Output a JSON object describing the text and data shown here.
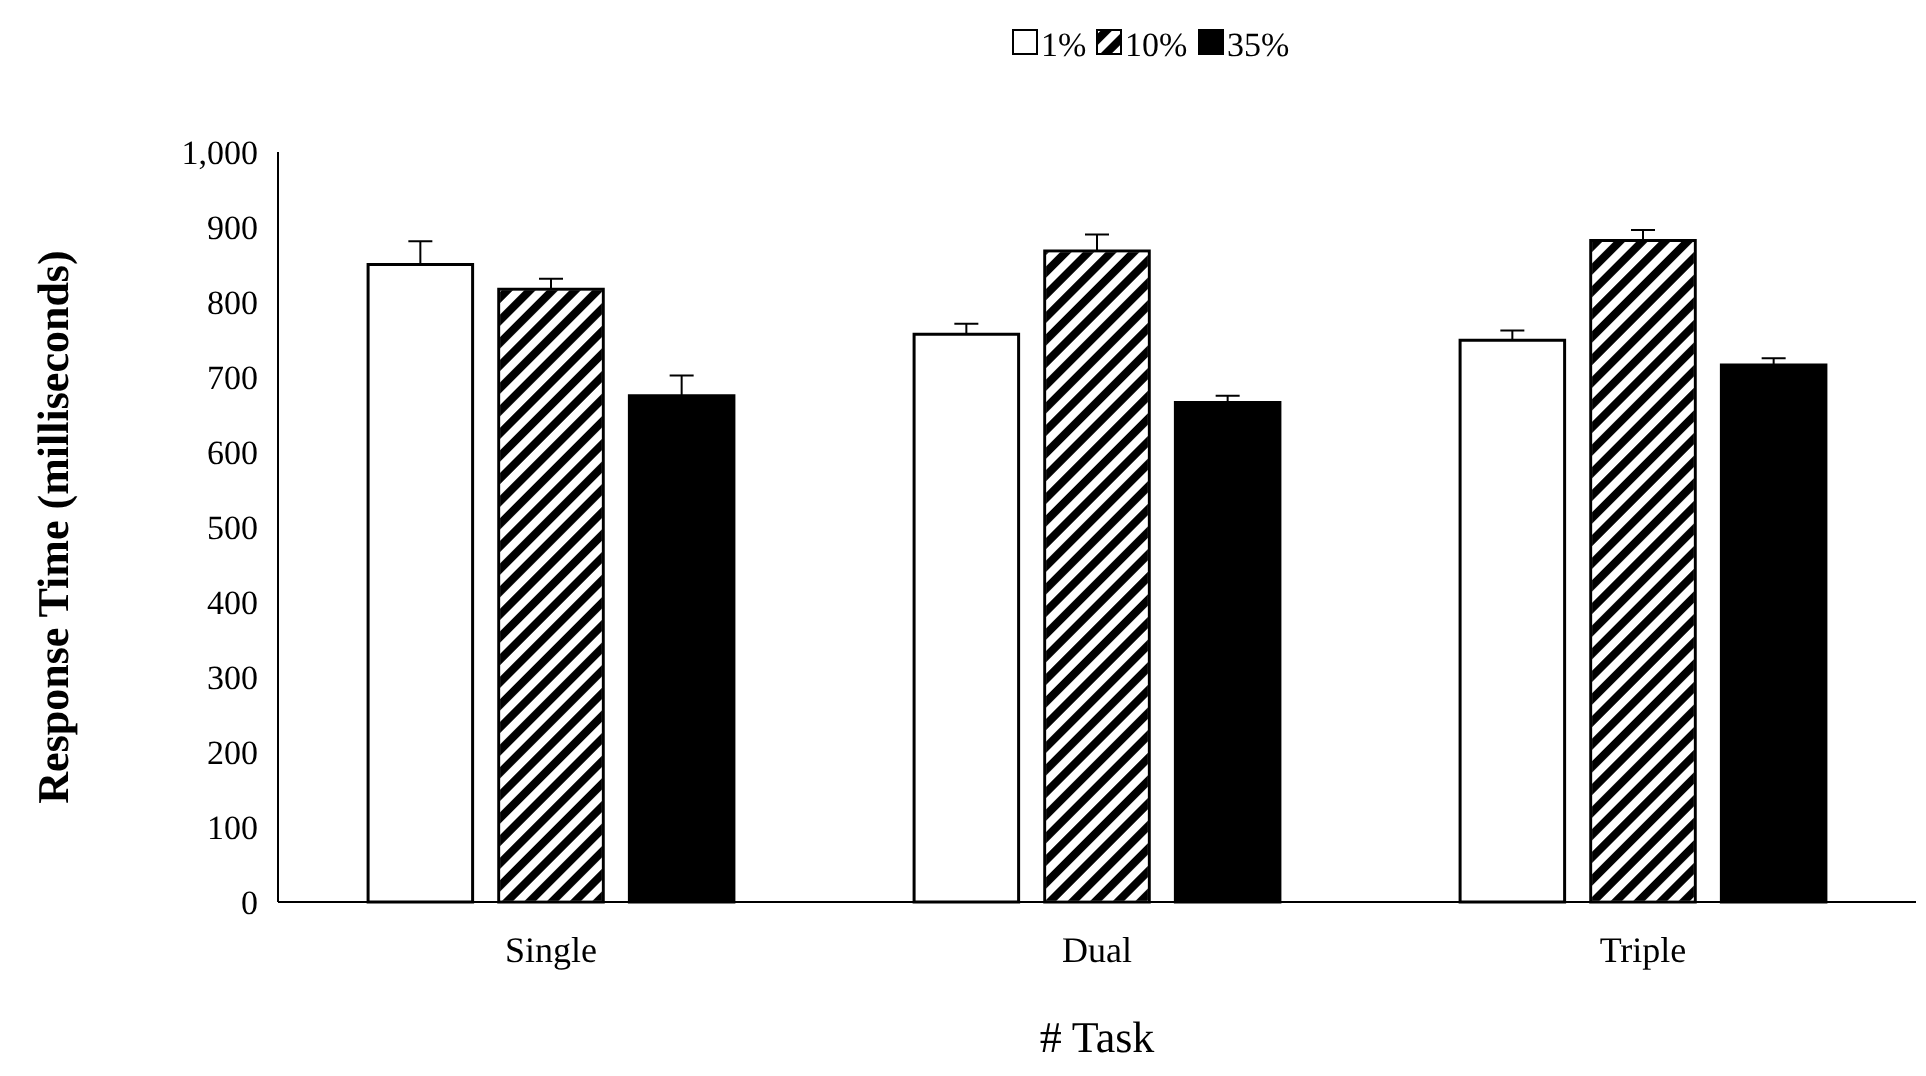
{
  "chart_data": {
    "type": "bar",
    "xlabel": "# Task",
    "ylabel": "Response Time (milliseconds)",
    "categories": [
      "Single",
      "Dual",
      "Triple"
    ],
    "series": [
      {
        "name": "1%",
        "color": "#ffffff",
        "values": [
          850,
          757,
          749
        ],
        "errors": [
          [
            850,
            881
          ],
          [
            757,
            771
          ],
          [
            749,
            762
          ]
        ]
      },
      {
        "name": "10%",
        "color": "#808080",
        "values": [
          817,
          868,
          882
        ],
        "errors": [
          [
            817,
            831
          ],
          [
            868,
            890
          ],
          [
            882,
            896
          ]
        ]
      },
      {
        "name": "35%",
        "color": "#000000",
        "values": [
          675,
          666,
          716
        ],
        "errors": [
          [
            675,
            702
          ],
          [
            666,
            675
          ],
          [
            716,
            725
          ]
        ]
      }
    ],
    "ylim": [
      0,
      1000
    ],
    "yticks": [
      0,
      100,
      200,
      300,
      400,
      500,
      600,
      700,
      800,
      900,
      {
        "value": 1000,
        "label": "1,000"
      }
    ],
    "grid": false,
    "legend": "top"
  }
}
